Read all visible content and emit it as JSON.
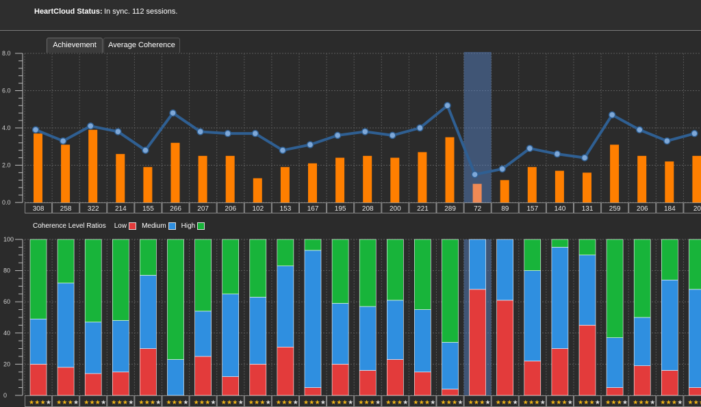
{
  "status": {
    "label": "HeartCloud Status:",
    "text": "In sync. 112 sessions."
  },
  "tabs": [
    {
      "label": "Achievement",
      "active": true
    },
    {
      "label": "Average Coherence",
      "active": false
    }
  ],
  "selected_index": 16,
  "legend": {
    "title": "Coherence Level Ratios",
    "items": [
      {
        "label": "Low",
        "color": "#e33b3b"
      },
      {
        "label": "Medium",
        "color": "#2f8fe0"
      },
      {
        "label": "High",
        "color": "#18b43a"
      }
    ]
  },
  "colors": {
    "achievement_bar": "#ff7f00",
    "achievement_bar_selected": "#f08a55",
    "coherence_line": "#2f5f92",
    "coherence_point": "#7ea8d8",
    "selection_highlight": "#5a8ad0",
    "star_filled": "#f2b617",
    "star_empty": "#dddddd"
  },
  "chart_data": [
    {
      "type": "bar",
      "categories": [
        "308",
        "258",
        "322",
        "214",
        "155",
        "266",
        "207",
        "206",
        "102",
        "153",
        "167",
        "195",
        "208",
        "200",
        "221",
        "289",
        "72",
        "89",
        "157",
        "140",
        "131",
        "259",
        "206",
        "184",
        "20"
      ],
      "series": [
        {
          "values": [
            3.7,
            3.1,
            3.9,
            2.6,
            1.9,
            3.2,
            2.5,
            2.5,
            1.3,
            1.9,
            2.1,
            2.4,
            2.5,
            2.4,
            2.7,
            3.5,
            1.0,
            1.2,
            1.9,
            1.7,
            1.6,
            3.1,
            2.5,
            2.2,
            2.5
          ]
        },
        {
          "values": [
            3.9,
            3.3,
            4.1,
            3.8,
            2.8,
            4.8,
            3.8,
            3.7,
            3.7,
            2.8,
            3.1,
            3.6,
            3.8,
            3.6,
            4.0,
            5.2,
            1.5,
            1.8,
            2.9,
            2.6,
            2.4,
            4.7,
            3.9,
            3.3,
            3.7
          ]
        }
      ],
      "ylim": [
        0,
        8.0
      ],
      "yticks": [
        "0.0",
        "2.0",
        "4.0",
        "6.0",
        "8.0"
      ],
      "grid": true
    },
    {
      "type": "bar",
      "stacked": true,
      "categories": [
        "308",
        "258",
        "322",
        "214",
        "155",
        "266",
        "207",
        "206",
        "102",
        "153",
        "167",
        "195",
        "208",
        "200",
        "221",
        "289",
        "72",
        "89",
        "157",
        "140",
        "131",
        "259",
        "206",
        "184",
        "20"
      ],
      "series": [
        {
          "name": "Low",
          "values": [
            20,
            18,
            14,
            15,
            30,
            0,
            25,
            12,
            20,
            31,
            5,
            20,
            16,
            23,
            15,
            4,
            68,
            61,
            22,
            30,
            45,
            5,
            19,
            16,
            5
          ]
        },
        {
          "name": "Medium",
          "values": [
            29,
            54,
            33,
            33,
            47,
            23,
            29,
            53,
            43,
            52,
            88,
            39,
            41,
            38,
            40,
            30,
            32,
            39,
            58,
            65,
            45,
            32,
            31,
            58,
            63
          ]
        },
        {
          "name": "High",
          "values": [
            51,
            28,
            53,
            52,
            23,
            77,
            46,
            35,
            37,
            17,
            7,
            41,
            43,
            39,
            45,
            66,
            0,
            0,
            20,
            5,
            10,
            63,
            50,
            26,
            32
          ]
        }
      ],
      "ylim": [
        0,
        100
      ],
      "yticks": [
        "0",
        "20",
        "40",
        "60",
        "80",
        "100"
      ],
      "ratings": [
        3,
        3,
        3,
        3,
        3,
        3,
        3,
        3,
        3,
        3,
        3,
        3,
        3,
        3,
        3,
        3,
        3,
        3,
        3,
        3,
        3,
        3,
        3,
        3,
        3
      ],
      "rating_max": 4,
      "grid": true
    }
  ]
}
